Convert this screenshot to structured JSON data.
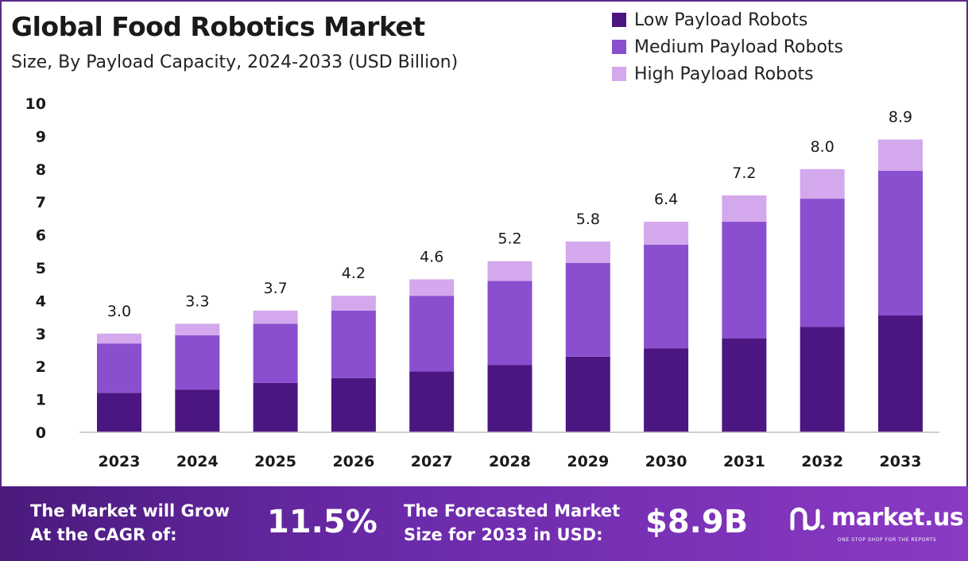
{
  "title": "Global Food Robotics Market",
  "subtitle": "Size, By Payload Capacity, 2024-2033 (USD Billion)",
  "legend": [
    {
      "label": "Low Payload Robots",
      "color": "#4c1682"
    },
    {
      "label": "Medium Payload Robots",
      "color": "#8a4fcf"
    },
    {
      "label": "High Payload Robots",
      "color": "#d4a8ec"
    }
  ],
  "chart_data": {
    "type": "bar",
    "stacked": true,
    "categories": [
      "2023",
      "2024",
      "2025",
      "2026",
      "2027",
      "2028",
      "2029",
      "2030",
      "2031",
      "2032",
      "2033"
    ],
    "series": [
      {
        "name": "Low Payload Robots",
        "color": "#4c1682",
        "values": [
          1.2,
          1.3,
          1.5,
          1.65,
          1.85,
          2.05,
          2.3,
          2.55,
          2.85,
          3.2,
          3.55
        ]
      },
      {
        "name": "Medium Payload Robots",
        "color": "#8a4fcf",
        "values": [
          1.5,
          1.65,
          1.8,
          2.05,
          2.3,
          2.55,
          2.85,
          3.15,
          3.55,
          3.9,
          4.4
        ]
      },
      {
        "name": "High Payload Robots",
        "color": "#d4a8ec",
        "values": [
          0.3,
          0.35,
          0.4,
          0.45,
          0.5,
          0.6,
          0.65,
          0.7,
          0.8,
          0.9,
          0.95
        ]
      }
    ],
    "totals": [
      "3.0",
      "3.3",
      "3.7",
      "4.2",
      "4.6",
      "5.2",
      "5.8",
      "6.4",
      "7.2",
      "8.0",
      "8.9"
    ],
    "ylim": [
      0,
      10
    ],
    "yticks": [
      "0",
      "1",
      "2",
      "3",
      "4",
      "5",
      "6",
      "7",
      "8",
      "9",
      "10"
    ],
    "grid": false,
    "legend_position": "top-right"
  },
  "footer": {
    "cagr_label_line1": "The Market will Grow",
    "cagr_label_line2": "At the CAGR of:",
    "cagr_value": "11.5%",
    "forecast_label_line1": "The Forecasted Market",
    "forecast_label_line2": "Size for 2033 in USD:",
    "forecast_value": "$8.9B",
    "brand_name": "market.us",
    "brand_tagline": "ONE STOP SHOP FOR THE REPORTS"
  }
}
